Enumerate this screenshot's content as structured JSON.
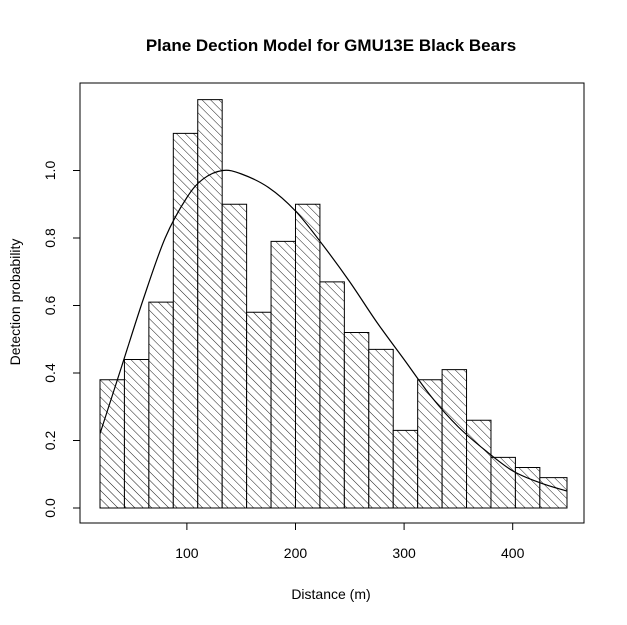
{
  "chart_data": {
    "type": "bar",
    "title": "Plane Dection Model for GMU13E Black Bears",
    "xlabel": "Distance (m)",
    "ylabel": "Detection probability",
    "xlim": [
      20,
      450
    ],
    "ylim": [
      0,
      1.2
    ],
    "x_ticks": [
      100,
      200,
      300,
      400
    ],
    "x_tick_labels": [
      "100",
      "200",
      "300",
      "400"
    ],
    "y_ticks": [
      0.0,
      0.2,
      0.4,
      0.6,
      0.8,
      1.0
    ],
    "y_tick_labels": [
      "0.0",
      "0.2",
      "0.4",
      "0.6",
      "0.8",
      "1.0"
    ],
    "grid": false,
    "bin_edges": [
      20,
      42.5,
      65,
      87.5,
      110,
      132.5,
      155,
      177.5,
      200,
      222.5,
      245,
      267.5,
      290,
      312.5,
      335,
      357.5,
      380,
      402.5,
      425,
      450
    ],
    "values": [
      0.38,
      0.44,
      0.61,
      1.11,
      1.21,
      0.9,
      0.58,
      0.79,
      0.9,
      0.67,
      0.52,
      0.47,
      0.23,
      0.38,
      0.41,
      0.26,
      0.15,
      0.12,
      0.09
    ],
    "curve": {
      "x": [
        20,
        40,
        60,
        80,
        100,
        115,
        133,
        150,
        175,
        200,
        225,
        250,
        275,
        300,
        325,
        350,
        375,
        400,
        425,
        450
      ],
      "y": [
        0.22,
        0.42,
        0.62,
        0.8,
        0.92,
        0.975,
        1.0,
        0.99,
        0.95,
        0.88,
        0.78,
        0.67,
        0.55,
        0.44,
        0.33,
        0.24,
        0.17,
        0.11,
        0.075,
        0.05
      ]
    }
  }
}
